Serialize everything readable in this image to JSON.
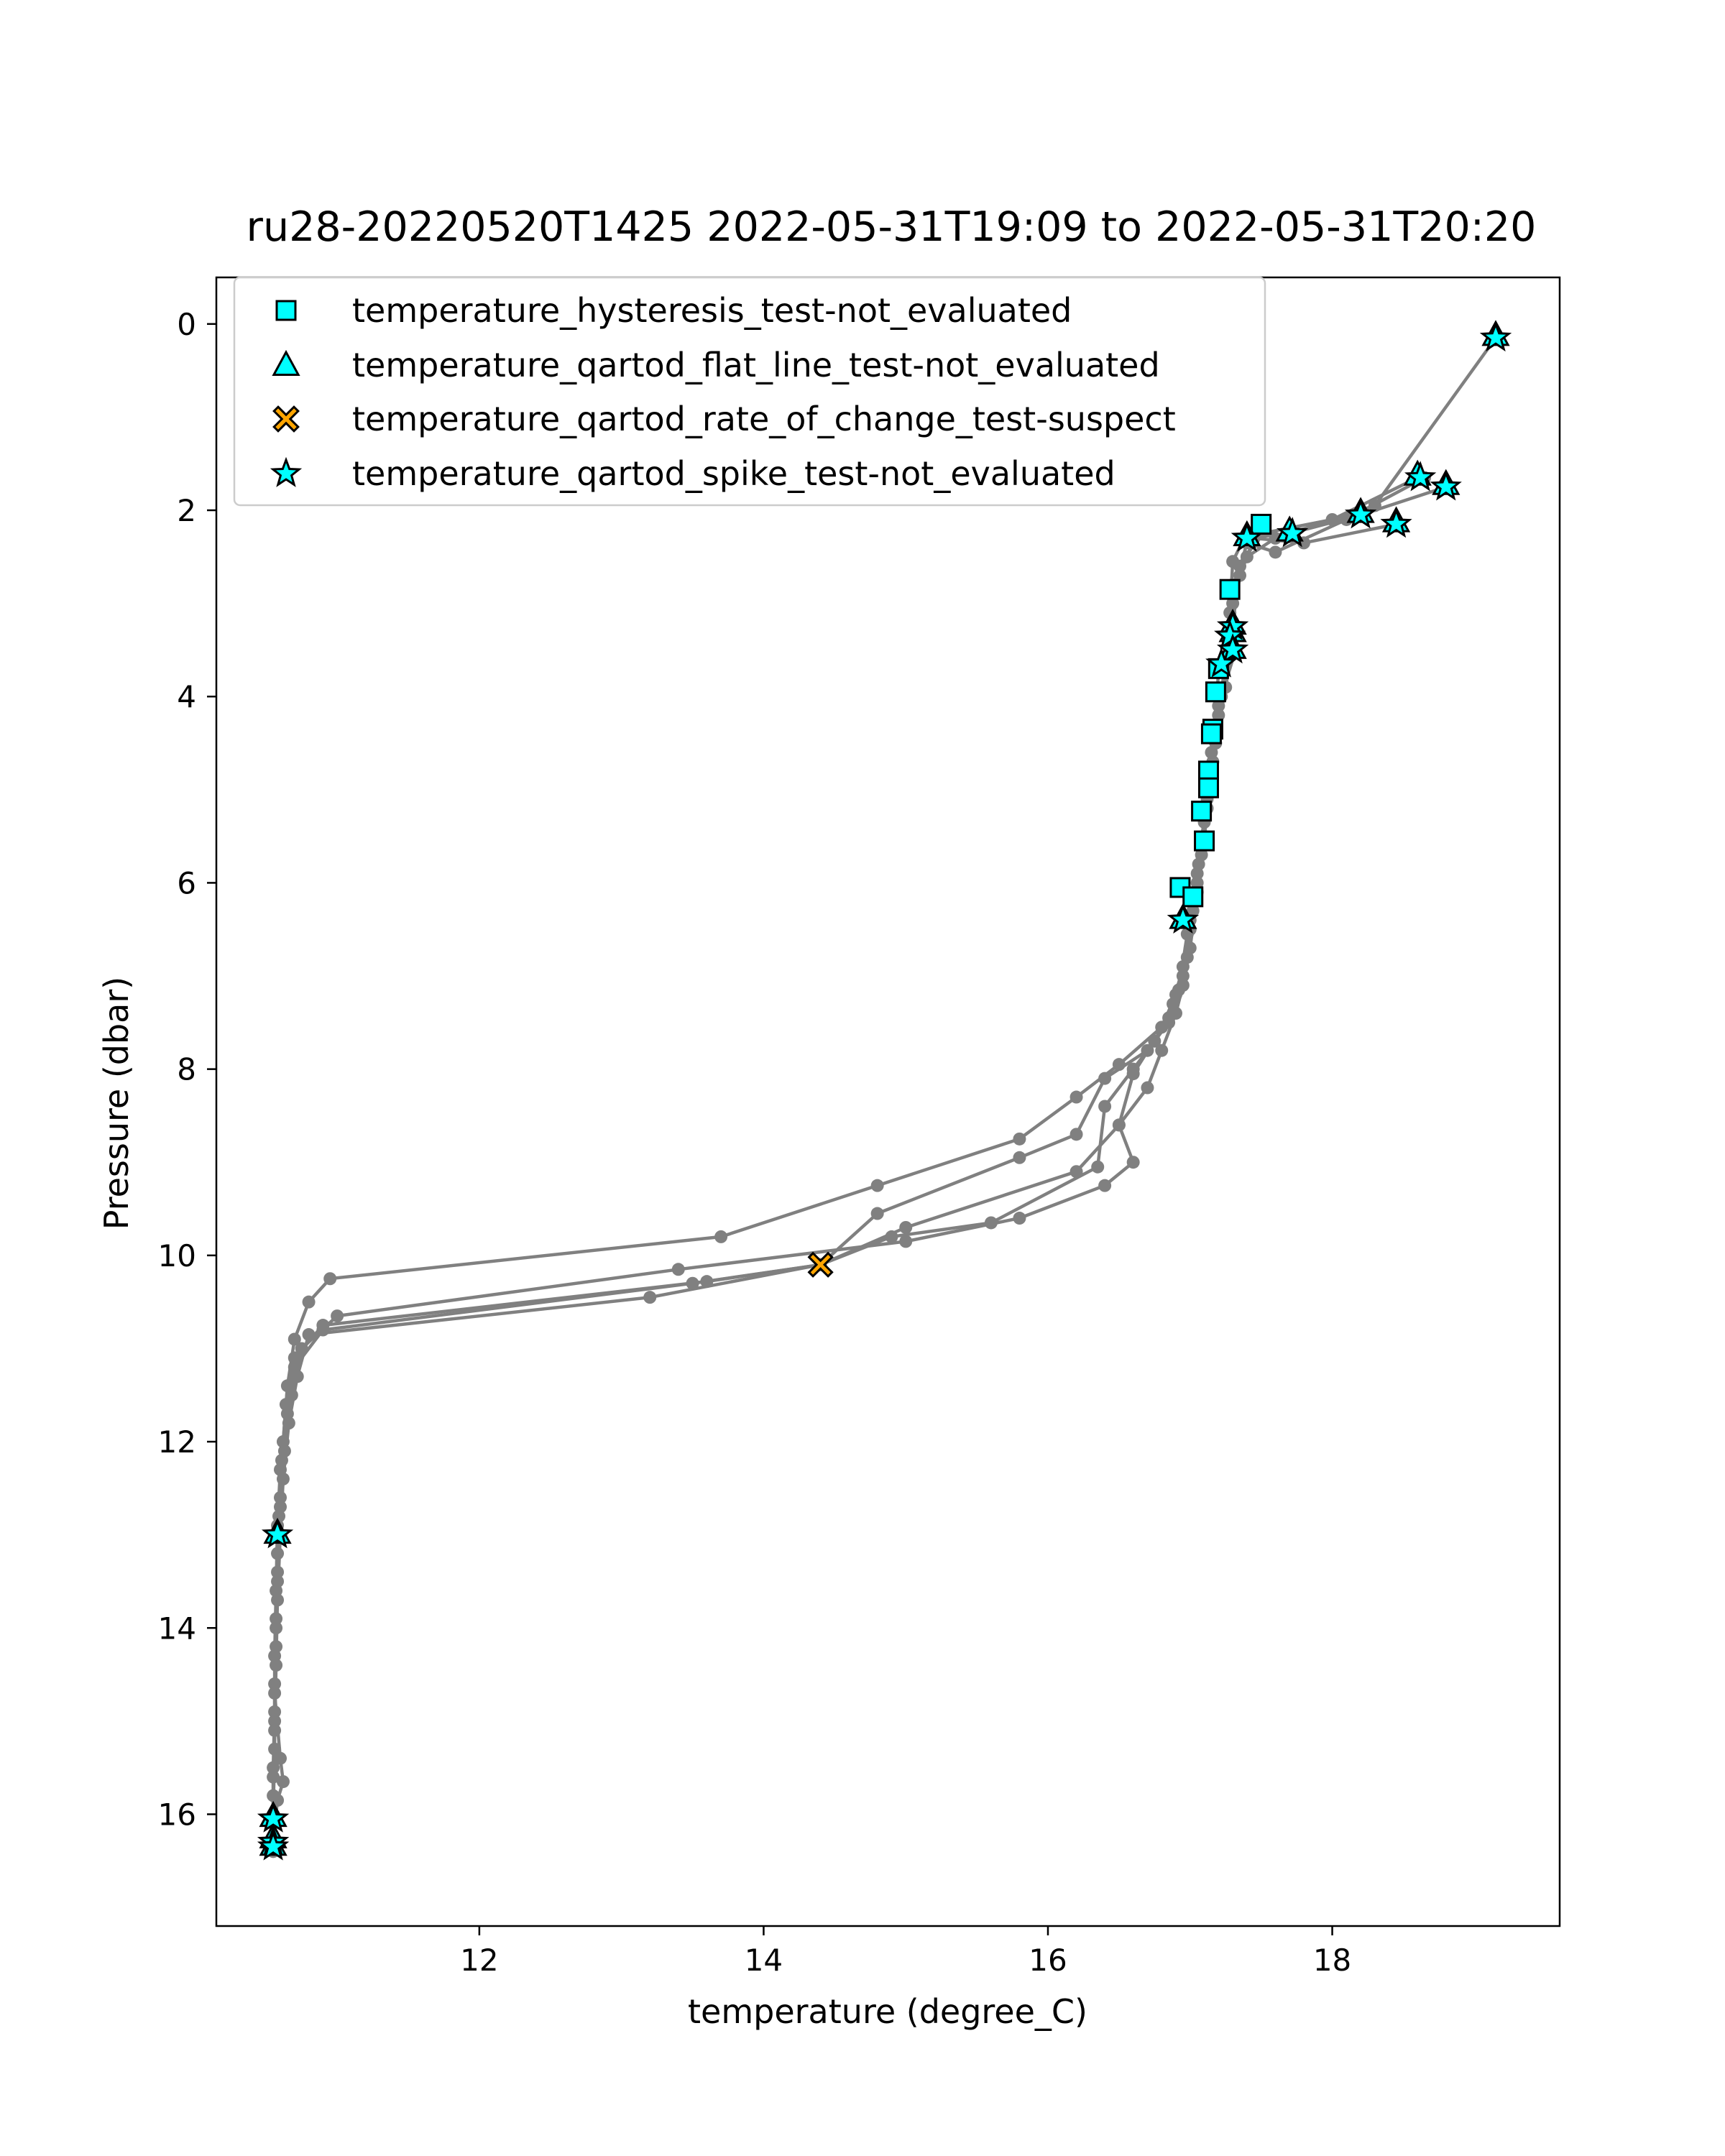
{
  "chart_data": {
    "type": "scatter",
    "title": "ru28-20220520T1425 2022-05-31T19:09 to 2022-05-31T20:20",
    "xlabel": "temperature (degree_C)",
    "ylabel": "Pressure (dbar)",
    "xlim": [
      10.15,
      19.6
    ],
    "ylim": [
      17.2,
      -0.5
    ],
    "y_inverted": true,
    "xticks": [
      12,
      14,
      16,
      18
    ],
    "yticks": [
      0,
      2,
      4,
      6,
      8,
      10,
      12,
      14,
      16
    ],
    "legend_position": "upper-left",
    "profile_color": "#808080",
    "profiles": [
      [
        [
          19.15,
          0.15
        ],
        [
          18.3,
          1.95
        ],
        [
          17.6,
          2.3
        ],
        [
          17.4,
          2.5
        ],
        [
          17.3,
          2.8
        ],
        [
          17.3,
          3.3
        ],
        [
          17.2,
          3.7
        ],
        [
          17.18,
          4.3
        ],
        [
          17.15,
          4.9
        ],
        [
          17.1,
          5.5
        ],
        [
          17.05,
          6.1
        ],
        [
          17.0,
          6.7
        ],
        [
          16.95,
          7.1
        ],
        [
          16.9,
          7.4
        ],
        [
          16.8,
          7.8
        ],
        [
          16.7,
          8.2
        ],
        [
          16.5,
          8.6
        ],
        [
          16.2,
          9.1
        ],
        [
          15.0,
          9.7
        ],
        [
          14.4,
          10.1
        ],
        [
          13.5,
          10.3
        ],
        [
          10.9,
          10.8
        ],
        [
          10.7,
          11.2
        ],
        [
          10.65,
          11.7
        ],
        [
          10.6,
          12.3
        ],
        [
          10.58,
          12.9
        ],
        [
          10.57,
          13.6
        ],
        [
          10.56,
          14.3
        ],
        [
          10.56,
          15.0
        ],
        [
          10.55,
          15.6
        ],
        [
          10.55,
          16.05
        ]
      ],
      [
        [
          18.6,
          1.65
        ],
        [
          18.0,
          2.1
        ],
        [
          17.5,
          2.25
        ],
        [
          17.35,
          2.6
        ],
        [
          17.3,
          3.0
        ],
        [
          17.3,
          3.45
        ],
        [
          17.25,
          3.9
        ],
        [
          17.18,
          4.5
        ],
        [
          17.12,
          5.1
        ],
        [
          17.08,
          5.7
        ],
        [
          17.02,
          6.3
        ],
        [
          16.98,
          6.8
        ],
        [
          16.9,
          7.2
        ],
        [
          16.8,
          7.55
        ],
        [
          16.5,
          7.95
        ],
        [
          16.2,
          8.3
        ],
        [
          15.8,
          8.75
        ],
        [
          14.8,
          9.25
        ],
        [
          13.7,
          9.8
        ],
        [
          10.95,
          10.25
        ],
        [
          10.8,
          10.5
        ],
        [
          10.7,
          10.9
        ],
        [
          10.65,
          11.4
        ],
        [
          10.62,
          12.0
        ],
        [
          10.6,
          12.6
        ],
        [
          10.58,
          13.2
        ],
        [
          10.57,
          13.9
        ],
        [
          10.56,
          14.6
        ],
        [
          10.56,
          15.3
        ],
        [
          10.55,
          16.0
        ],
        [
          10.55,
          16.25
        ]
      ],
      [
        [
          18.8,
          1.75
        ],
        [
          18.2,
          2.05
        ],
        [
          17.7,
          2.25
        ],
        [
          17.38,
          2.3
        ],
        [
          17.3,
          2.55
        ],
        [
          17.28,
          3.1
        ],
        [
          17.32,
          3.5
        ],
        [
          17.22,
          4.0
        ],
        [
          17.15,
          4.6
        ],
        [
          17.1,
          5.3
        ],
        [
          17.05,
          5.9
        ],
        [
          17.0,
          6.5
        ],
        [
          16.95,
          7.0
        ],
        [
          16.85,
          7.45
        ],
        [
          16.6,
          8.05
        ],
        [
          16.5,
          8.6
        ],
        [
          16.6,
          9.0
        ],
        [
          16.4,
          9.25
        ],
        [
          15.8,
          9.6
        ],
        [
          15.0,
          9.85
        ],
        [
          13.4,
          10.15
        ],
        [
          11.0,
          10.65
        ],
        [
          10.75,
          11.0
        ],
        [
          10.68,
          11.5
        ],
        [
          10.63,
          12.1
        ],
        [
          10.6,
          12.7
        ],
        [
          10.58,
          13.4
        ],
        [
          10.57,
          14.0
        ],
        [
          10.56,
          14.7
        ],
        [
          10.6,
          15.4
        ],
        [
          10.62,
          15.65
        ],
        [
          10.58,
          15.85
        ],
        [
          10.55,
          16.3
        ]
      ],
      [
        [
          18.45,
          2.15
        ],
        [
          17.8,
          2.35
        ],
        [
          17.45,
          2.3
        ],
        [
          17.35,
          2.7
        ],
        [
          17.3,
          3.2
        ],
        [
          17.25,
          3.6
        ],
        [
          17.2,
          4.2
        ],
        [
          17.15,
          4.8
        ],
        [
          17.1,
          5.35
        ],
        [
          17.05,
          6.0
        ],
        [
          16.98,
          6.55
        ],
        [
          16.92,
          7.15
        ],
        [
          16.85,
          7.5
        ],
        [
          16.7,
          7.8
        ],
        [
          16.4,
          8.1
        ],
        [
          16.2,
          8.7
        ],
        [
          15.8,
          8.95
        ],
        [
          14.8,
          9.55
        ],
        [
          14.4,
          10.1
        ],
        [
          13.2,
          10.45
        ],
        [
          10.8,
          10.85
        ],
        [
          10.72,
          11.3
        ],
        [
          10.66,
          11.8
        ],
        [
          10.62,
          12.4
        ],
        [
          10.6,
          13.0
        ],
        [
          10.58,
          13.7
        ],
        [
          10.57,
          14.4
        ],
        [
          10.56,
          15.1
        ],
        [
          10.55,
          15.8
        ],
        [
          10.55,
          16.1
        ],
        [
          10.55,
          16.4
        ]
      ],
      [
        [
          18.65,
          1.65
        ],
        [
          18.1,
          2.1
        ],
        [
          17.6,
          2.45
        ],
        [
          17.4,
          2.35
        ],
        [
          17.3,
          2.9
        ],
        [
          17.28,
          3.35
        ],
        [
          17.3,
          3.5
        ],
        [
          17.2,
          4.1
        ],
        [
          17.16,
          4.7
        ],
        [
          17.12,
          5.2
        ],
        [
          17.06,
          5.8
        ],
        [
          17.0,
          6.4
        ],
        [
          16.95,
          6.9
        ],
        [
          16.88,
          7.3
        ],
        [
          16.75,
          7.7
        ],
        [
          16.6,
          8.0
        ],
        [
          16.4,
          8.4
        ],
        [
          16.35,
          9.05
        ],
        [
          15.6,
          9.65
        ],
        [
          14.9,
          9.8
        ],
        [
          14.4,
          10.1
        ],
        [
          13.6,
          10.28
        ],
        [
          10.9,
          10.75
        ],
        [
          10.7,
          11.1
        ],
        [
          10.64,
          11.6
        ],
        [
          10.61,
          12.2
        ],
        [
          10.59,
          12.8
        ],
        [
          10.58,
          13.5
        ],
        [
          10.57,
          14.2
        ],
        [
          10.56,
          14.9
        ],
        [
          10.55,
          15.5
        ],
        [
          10.55,
          16.35
        ]
      ]
    ],
    "series": [
      {
        "name": "temperature_hysteresis_test-not_evaluated",
        "marker": "square",
        "color": "#00ffff",
        "points": [
          [
            17.5,
            2.15
          ],
          [
            17.28,
            2.85
          ],
          [
            17.2,
            3.7
          ],
          [
            17.18,
            3.95
          ],
          [
            17.16,
            4.35
          ],
          [
            17.15,
            4.4
          ],
          [
            17.13,
            4.8
          ],
          [
            17.13,
            4.98
          ],
          [
            17.08,
            5.23
          ],
          [
            17.1,
            5.55
          ],
          [
            16.93,
            6.05
          ],
          [
            17.02,
            6.15
          ]
        ]
      },
      {
        "name": "temperature_qartod_flat_line_test-not_evaluated",
        "marker": "triangle",
        "color": "#00ffff",
        "points": [
          [
            19.15,
            0.12
          ],
          [
            18.6,
            1.62
          ],
          [
            18.8,
            1.72
          ],
          [
            18.2,
            2.02
          ],
          [
            18.45,
            2.12
          ],
          [
            17.7,
            2.22
          ],
          [
            17.4,
            2.27
          ],
          [
            17.3,
            3.22
          ],
          [
            17.3,
            3.3
          ],
          [
            17.3,
            3.48
          ],
          [
            16.95,
            6.38
          ],
          [
            10.58,
            12.98
          ],
          [
            10.55,
            16.02
          ],
          [
            10.55,
            16.25
          ],
          [
            10.55,
            16.33
          ]
        ]
      },
      {
        "name": "temperature_qartod_rate_of_change_test-suspect",
        "marker": "x",
        "color": "#ffa500",
        "points": [
          [
            14.4,
            10.1
          ]
        ]
      },
      {
        "name": "temperature_qartod_spike_test-not_evaluated",
        "marker": "star",
        "color": "#00ffff",
        "points": [
          [
            19.15,
            0.15
          ],
          [
            18.62,
            1.65
          ],
          [
            18.8,
            1.75
          ],
          [
            18.2,
            2.05
          ],
          [
            18.45,
            2.15
          ],
          [
            17.72,
            2.25
          ],
          [
            17.4,
            2.3
          ],
          [
            17.3,
            3.25
          ],
          [
            17.28,
            3.35
          ],
          [
            17.3,
            3.5
          ],
          [
            17.22,
            3.65
          ],
          [
            16.95,
            6.4
          ],
          [
            10.58,
            13.0
          ],
          [
            10.55,
            16.05
          ],
          [
            10.55,
            16.3
          ],
          [
            10.55,
            16.35
          ]
        ]
      }
    ]
  }
}
